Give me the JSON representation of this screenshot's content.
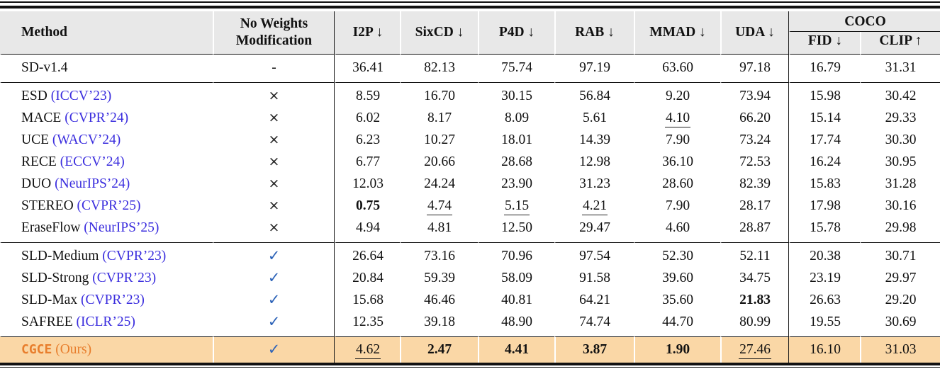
{
  "colors": {
    "header_bg": "#E8E8E8",
    "highlight_bg": "#FAD7A6",
    "accent_orange": "#E87E2D",
    "citation_blue": "#3B2EDE",
    "check_blue": "#2D63B8",
    "rule_black": "#111111"
  },
  "header": {
    "method": "Method",
    "no_weights_line1": "No Weights",
    "no_weights_line2": "Modification",
    "metrics": [
      "I2P ↓",
      "SixCD ↓",
      "P4D ↓",
      "RAB ↓",
      "MMAD ↓",
      "UDA ↓"
    ],
    "coco_group": "COCO",
    "coco_sub": [
      "FID ↓",
      "CLIP ↑"
    ]
  },
  "table": {
    "marks": {
      "dash": "-",
      "cross": "×",
      "check": "✓"
    },
    "rows": [
      {
        "method": "SD-v1.4",
        "cite": "",
        "mark": "dash",
        "section_start": true,
        "section_end": true,
        "values": [
          "36.41",
          "82.13",
          "75.74",
          "97.19",
          "63.60",
          "97.18",
          "16.79",
          "31.31"
        ]
      },
      {
        "method": "ESD",
        "cite": "(ICCV’23)",
        "mark": "cross",
        "section_start": true,
        "values": [
          "8.59",
          "16.70",
          "30.15",
          "56.84",
          "9.20",
          "73.94",
          "15.98",
          "30.42"
        ]
      },
      {
        "method": "MACE",
        "cite": "(CVPR’24)",
        "mark": "cross",
        "values": [
          "6.02",
          "8.17",
          "8.09",
          "5.61",
          {
            "v": "4.10",
            "u": true
          },
          "66.20",
          "15.14",
          "29.33"
        ]
      },
      {
        "method": "UCE",
        "cite": "(WACV’24)",
        "mark": "cross",
        "values": [
          "6.23",
          "10.27",
          "18.01",
          "14.39",
          "7.90",
          "73.24",
          "17.74",
          "30.30"
        ]
      },
      {
        "method": "RECE",
        "cite": "(ECCV’24)",
        "mark": "cross",
        "values": [
          "6.77",
          "20.66",
          "28.68",
          "12.98",
          "36.10",
          "72.53",
          "16.24",
          "30.95"
        ]
      },
      {
        "method": "DUO",
        "cite": "(NeurIPS’24)",
        "mark": "cross",
        "values": [
          "12.03",
          "24.24",
          "23.90",
          "31.23",
          "28.60",
          "82.39",
          "15.83",
          "31.28"
        ]
      },
      {
        "method": "STEREO",
        "cite": "(CVPR’25)",
        "mark": "cross",
        "values": [
          {
            "v": "0.75",
            "b": true
          },
          {
            "v": "4.74",
            "u": true
          },
          {
            "v": "5.15",
            "u": true
          },
          {
            "v": "4.21",
            "u": true
          },
          "7.90",
          "28.17",
          "17.98",
          "30.16"
        ]
      },
      {
        "method": "EraseFlow",
        "cite": "(NeurIPS’25)",
        "mark": "cross",
        "section_end": true,
        "values": [
          "4.94",
          "4.81",
          "12.50",
          "29.47",
          "4.60",
          "28.87",
          "15.78",
          "29.98"
        ]
      },
      {
        "method": "SLD-Medium",
        "cite": "(CVPR’23)",
        "mark": "check",
        "section_start": true,
        "values": [
          "26.64",
          "73.16",
          "70.96",
          "97.54",
          "52.30",
          "52.11",
          "20.38",
          "30.71"
        ]
      },
      {
        "method": "SLD-Strong",
        "cite": "(CVPR’23)",
        "mark": "check",
        "values": [
          "20.84",
          "59.39",
          "58.09",
          "91.58",
          "39.60",
          "34.75",
          "23.19",
          "29.97"
        ]
      },
      {
        "method": "SLD-Max",
        "cite": "(CVPR’23)",
        "mark": "check",
        "values": [
          "15.68",
          "46.46",
          "40.81",
          "64.21",
          "35.60",
          {
            "v": "21.83",
            "b": true
          },
          "26.63",
          "29.20"
        ]
      },
      {
        "method": "SAFREE",
        "cite": "(ICLR’25)",
        "mark": "check",
        "section_end": true,
        "values": [
          "12.35",
          "39.18",
          "48.90",
          "74.74",
          "44.70",
          "80.99",
          "19.55",
          "30.69"
        ]
      },
      {
        "method": "CGCE",
        "cite": "(Ours)",
        "mark": "check",
        "highlight": true,
        "section_start": true,
        "values": [
          {
            "v": "4.62",
            "u": true
          },
          {
            "v": "2.47",
            "b": true
          },
          {
            "v": "4.41",
            "b": true
          },
          {
            "v": "3.87",
            "b": true
          },
          {
            "v": "1.90",
            "b": true
          },
          {
            "v": "27.46",
            "u": true
          },
          "16.10",
          "31.03"
        ]
      }
    ]
  }
}
